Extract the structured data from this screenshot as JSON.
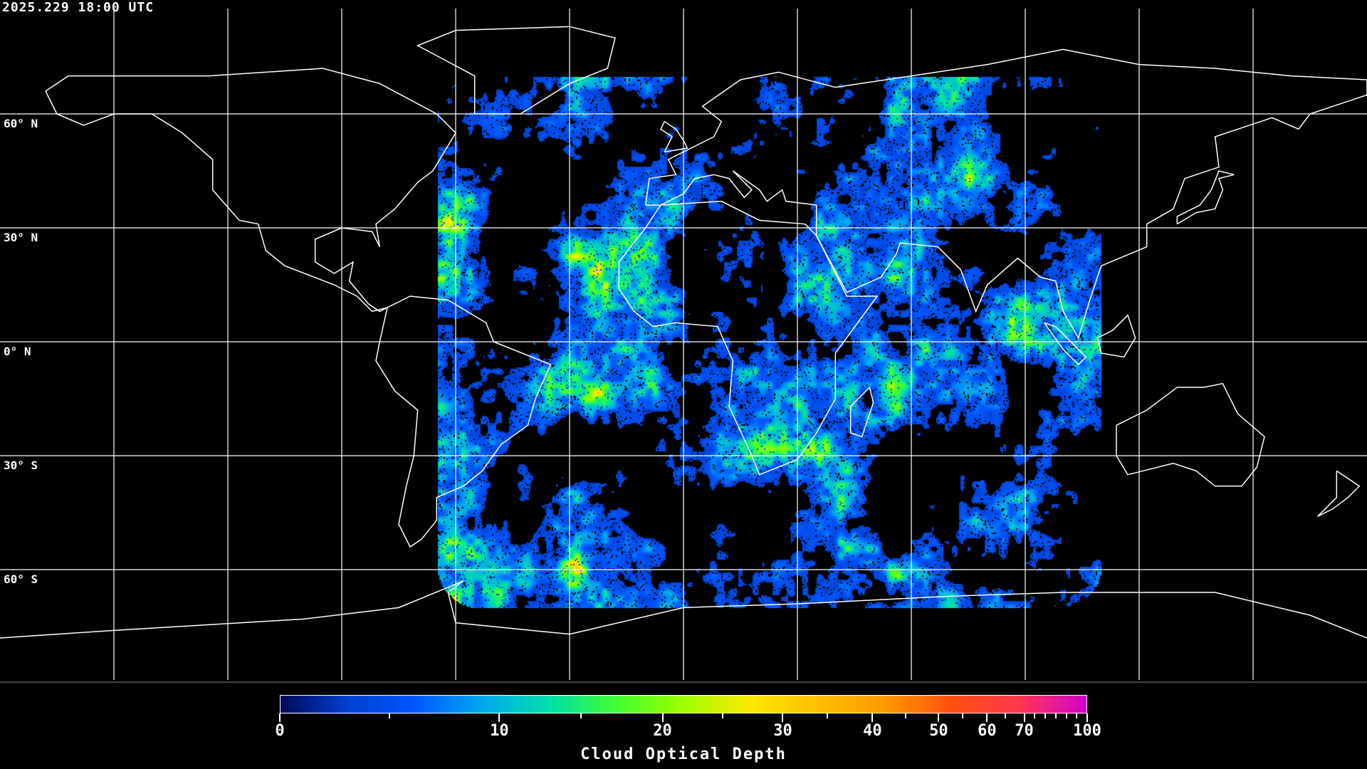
{
  "header": {
    "timestamp": "2025.229 18:00 UTC"
  },
  "map": {
    "projection": "equirectangular",
    "grid_spacing_degrees": 30,
    "grid_color": "#ffffff",
    "coastline_color": "#ffffff",
    "background_color": "#000000",
    "lat_labels": [
      "60° N",
      "30° N",
      "0° N",
      "30° S",
      "60° S"
    ],
    "lat_values": [
      60,
      30,
      0,
      -30,
      -60
    ],
    "data_coverage": {
      "lon_range": [
        -65,
        110
      ],
      "lat_range": [
        -70,
        70
      ]
    }
  },
  "colorbar": {
    "title": "Cloud Optical Depth",
    "tick_labels": [
      "0",
      "10",
      "20",
      "30",
      "40",
      "50",
      "60",
      "70",
      "100"
    ],
    "range": [
      0,
      100
    ],
    "colors": [
      "#000a5a",
      "#0040d0",
      "#0058ff",
      "#00a8f0",
      "#00e0a8",
      "#40ff30",
      "#a0ff00",
      "#ffe800",
      "#ffc000",
      "#ff9800",
      "#ff5010",
      "#ff3850",
      "#d000d0"
    ]
  }
}
